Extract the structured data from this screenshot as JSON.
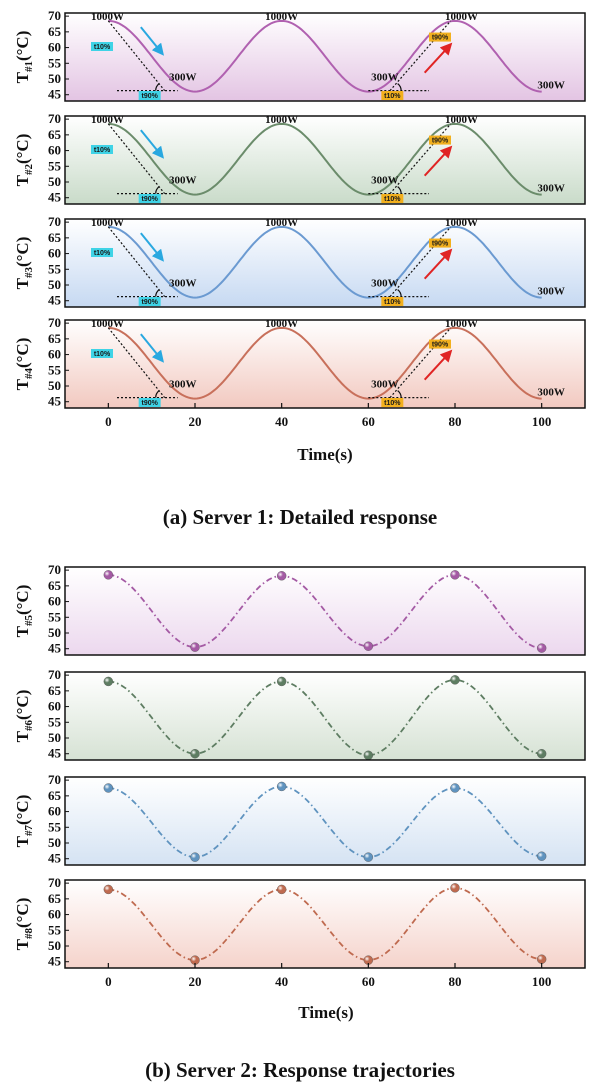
{
  "chart_data": [
    {
      "type": "line",
      "group": "a",
      "ylabel_base": "T",
      "ylabel_sub": "#1",
      "ylabel_unit": "(°C)",
      "color": "#b061b0",
      "bg_top": "#ffffff",
      "bg_bottom": "#e3c4e3",
      "ylim": [
        43,
        71
      ],
      "yticks": [
        45,
        50,
        55,
        60,
        65,
        70
      ],
      "annotations": [
        "1000W",
        "1000W",
        "1000W",
        "300W",
        "300W",
        "300W"
      ],
      "badges": [
        "t10%",
        "t90%",
        "t10%",
        "t90%"
      ]
    },
    {
      "type": "line",
      "group": "a",
      "ylabel_base": "T",
      "ylabel_sub": "#2",
      "ylabel_unit": "(°C)",
      "color": "#6b8c6b",
      "bg_top": "#ffffff",
      "bg_bottom": "#c9dbc9",
      "ylim": [
        43,
        71
      ],
      "yticks": [
        45,
        50,
        55,
        60,
        65,
        70
      ],
      "annotations": [
        "1000W",
        "1000W",
        "1000W",
        "300W",
        "300W",
        "300W"
      ],
      "badges": [
        "t10%",
        "t90%",
        "t10%",
        "t90%"
      ]
    },
    {
      "type": "line",
      "group": "a",
      "ylabel_base": "T",
      "ylabel_sub": "#3",
      "ylabel_unit": "(°C)",
      "color": "#6b9ad1",
      "bg_top": "#ffffff",
      "bg_bottom": "#c6d9f2",
      "ylim": [
        43,
        71
      ],
      "yticks": [
        45,
        50,
        55,
        60,
        65,
        70
      ],
      "annotations": [
        "1000W",
        "1000W",
        "1000W",
        "300W",
        "300W",
        "300W"
      ],
      "badges": [
        "t10%",
        "t90%",
        "t10%",
        "t90%"
      ]
    },
    {
      "type": "line",
      "group": "a",
      "ylabel_base": "T",
      "ylabel_sub": "#4",
      "ylabel_unit": "(°C)",
      "color": "#c8705b",
      "bg_top": "#ffffff",
      "bg_bottom": "#f2c9c0",
      "ylim": [
        43,
        71
      ],
      "yticks": [
        45,
        50,
        55,
        60,
        65,
        70
      ],
      "annotations": [
        "1000W",
        "1000W",
        "1000W",
        "300W",
        "300W",
        "300W"
      ],
      "badges": [
        "t10%",
        "t90%",
        "t10%",
        "t90%"
      ]
    },
    {
      "type": "scatter",
      "group": "b",
      "ylabel_base": "T",
      "ylabel_sub": "#5",
      "ylabel_unit": "(°C)",
      "color": "#a45aa4",
      "bg_top": "#ffffff",
      "bg_bottom": "#ecd8ee",
      "ylim": [
        43,
        71
      ],
      "yticks": [
        45,
        50,
        55,
        60,
        65,
        70
      ],
      "x": [
        0,
        20,
        40,
        60,
        80,
        100
      ],
      "y": [
        68.5,
        45.5,
        68.2,
        45.8,
        68.5,
        45.2
      ]
    },
    {
      "type": "scatter",
      "group": "b",
      "ylabel_base": "T",
      "ylabel_sub": "#6",
      "ylabel_unit": "(°C)",
      "color": "#5e7d62",
      "bg_top": "#ffffff",
      "bg_bottom": "#d6e2d4",
      "ylim": [
        43,
        71
      ],
      "yticks": [
        45,
        50,
        55,
        60,
        65,
        70
      ],
      "x": [
        0,
        20,
        40,
        60,
        80,
        100
      ],
      "y": [
        68.0,
        45.0,
        68.0,
        44.5,
        68.5,
        45.0
      ]
    },
    {
      "type": "scatter",
      "group": "b",
      "ylabel_base": "T",
      "ylabel_sub": "#7",
      "ylabel_unit": "(°C)",
      "color": "#5f93bf",
      "bg_top": "#ffffff",
      "bg_bottom": "#d5e3f3",
      "ylim": [
        43,
        71
      ],
      "yticks": [
        45,
        50,
        55,
        60,
        65,
        70
      ],
      "x": [
        0,
        20,
        40,
        60,
        80,
        100
      ],
      "y": [
        67.5,
        45.5,
        68.0,
        45.5,
        67.5,
        45.8
      ]
    },
    {
      "type": "scatter",
      "group": "b",
      "ylabel_base": "T",
      "ylabel_sub": "#8",
      "ylabel_unit": "(°C)",
      "color": "#bf6a4f",
      "bg_top": "#ffffff",
      "bg_bottom": "#f5d3cb",
      "ylim": [
        43,
        71
      ],
      "yticks": [
        45,
        50,
        55,
        60,
        65,
        70
      ],
      "x": [
        0,
        20,
        40,
        60,
        80,
        100
      ],
      "y": [
        68.0,
        45.5,
        68.0,
        45.5,
        68.5,
        45.8
      ]
    }
  ],
  "curve_a": {
    "x": [
      0,
      3,
      6,
      9,
      12,
      15,
      18,
      21,
      24,
      27,
      30,
      33,
      36,
      39,
      42,
      45,
      48,
      51,
      54,
      57,
      60,
      63,
      66,
      69,
      72,
      75,
      78,
      81,
      84,
      87,
      90,
      93,
      96,
      99,
      100
    ],
    "y_note": "sinusoid between 46 and 68.5"
  },
  "xaxis": {
    "ticks": [
      0,
      20,
      40,
      60,
      80,
      100
    ],
    "tick_labels": [
      "0",
      "20",
      "40",
      "60",
      "80",
      "100"
    ],
    "xlim": [
      -10,
      110
    ],
    "label": "Time(s)"
  },
  "captions": {
    "a": "(a)   Server 1: Detailed response",
    "b": "(b)   Server 2: Response trajectories"
  }
}
